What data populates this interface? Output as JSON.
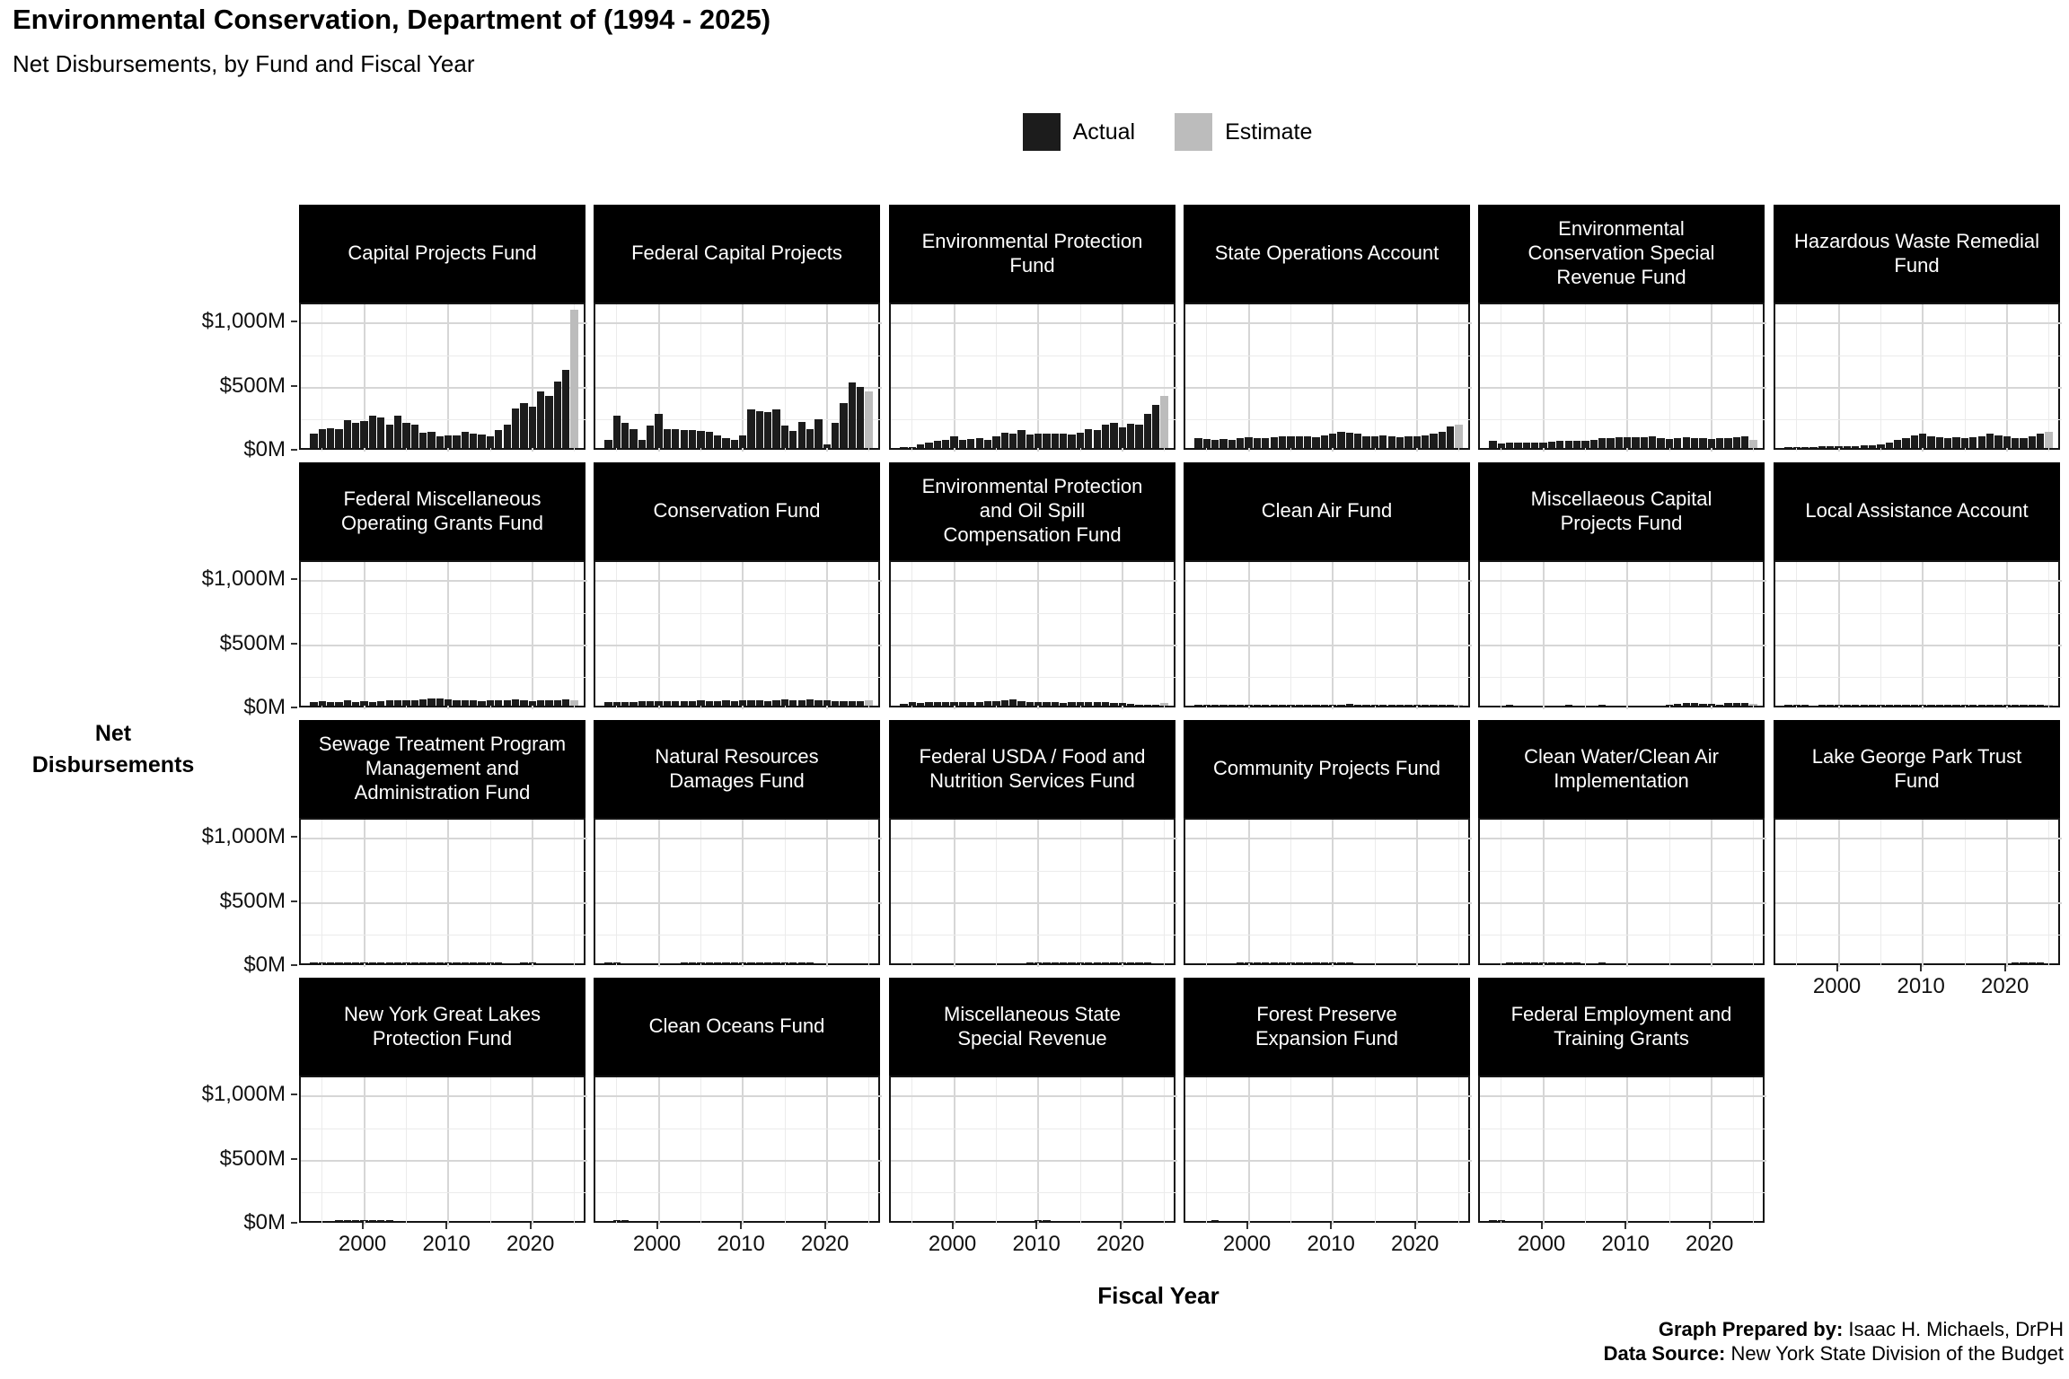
{
  "header": {
    "title": "Environmental Conservation, Department of (1994 - 2025)",
    "subtitle": "Net Disbursements, by Fund and Fiscal Year"
  },
  "legend": {
    "items": [
      {
        "label": "Actual",
        "color": "#1c1c1c"
      },
      {
        "label": "Estimate",
        "color": "#bcbcbc"
      }
    ]
  },
  "axes": {
    "y_label_lines": [
      "Net",
      "Disbursements"
    ],
    "x_label": "Fiscal Year",
    "y_ticks": [
      "$0M",
      "$500M",
      "$1,000M"
    ],
    "x_ticks": [
      "2000",
      "2010",
      "2020"
    ]
  },
  "footer": {
    "prepared_label": "Graph Prepared by:",
    "prepared_value": " Isaac H. Michaels, DrPH",
    "source_label": "Data Source:",
    "source_value": " New York State Division of the Budget"
  },
  "chart_data": {
    "type": "bar",
    "title": "Environmental Conservation, Department of (1994 - 2025)",
    "subtitle": "Net Disbursements, by Fund and Fiscal Year",
    "xlabel": "Fiscal Year",
    "ylabel": "Net Disbursements",
    "units": "$M",
    "x": [
      1994,
      1995,
      1996,
      1997,
      1998,
      1999,
      2000,
      2001,
      2002,
      2003,
      2004,
      2005,
      2006,
      2007,
      2008,
      2009,
      2010,
      2011,
      2012,
      2013,
      2014,
      2015,
      2016,
      2017,
      2018,
      2019,
      2020,
      2021,
      2022,
      2023,
      2024,
      2025
    ],
    "ylim": [
      0,
      1150
    ],
    "y_tick_values": [
      0,
      500,
      1000
    ],
    "x_tick_values": [
      2000,
      2010,
      2020
    ],
    "grid": true,
    "legend_position": "top",
    "estimate_year": 2025,
    "series_colors": {
      "actual": "#1c1c1c",
      "estimate": "#bcbcbc"
    },
    "facets": [
      {
        "name": "Capital Projects Fund",
        "title_lines": [
          "Capital Projects Fund"
        ],
        "values": [
          110,
          150,
          155,
          145,
          215,
          200,
          210,
          250,
          240,
          185,
          255,
          195,
          180,
          120,
          130,
          95,
          100,
          100,
          130,
          115,
          105,
          90,
          140,
          185,
          310,
          350,
          325,
          445,
          410,
          520,
          610,
          1080
        ]
      },
      {
        "name": "Federal Capital Projects",
        "title_lines": [
          "Federal Capital Projects"
        ],
        "values": [
          60,
          250,
          200,
          150,
          60,
          175,
          265,
          150,
          145,
          140,
          140,
          135,
          125,
          100,
          80,
          65,
          100,
          305,
          290,
          280,
          300,
          175,
          135,
          205,
          145,
          225,
          30,
          200,
          350,
          515,
          480,
          445
        ]
      },
      {
        "name": "Environmental Protection Fund",
        "title_lines": [
          "Environmental Protection",
          "Fund"
        ],
        "values": [
          5,
          10,
          25,
          40,
          55,
          60,
          90,
          65,
          70,
          80,
          65,
          95,
          120,
          115,
          140,
          105,
          110,
          115,
          115,
          110,
          105,
          120,
          150,
          140,
          180,
          195,
          165,
          190,
          185,
          265,
          335,
          410
        ]
      },
      {
        "name": "State Operations Account",
        "title_lines": [
          "State Operations Account"
        ],
        "values": [
          75,
          70,
          65,
          70,
          60,
          80,
          85,
          75,
          80,
          85,
          90,
          95,
          95,
          90,
          85,
          100,
          115,
          125,
          120,
          110,
          90,
          95,
          100,
          90,
          85,
          90,
          95,
          100,
          110,
          130,
          170,
          185
        ]
      },
      {
        "name": "Environmental Conservation Special Revenue Fund",
        "title_lines": [
          "Environmental",
          "Conservation Special",
          "Revenue Fund"
        ],
        "values": [
          55,
          35,
          40,
          40,
          45,
          40,
          45,
          50,
          55,
          55,
          55,
          55,
          65,
          75,
          80,
          85,
          85,
          85,
          85,
          90,
          75,
          70,
          80,
          85,
          80,
          75,
          70,
          75,
          80,
          85,
          90,
          65
        ]
      },
      {
        "name": "Hazardous Waste Remedial Fund",
        "title_lines": [
          "Hazardous Waste Remedial",
          "Fund"
        ],
        "values": [
          5,
          8,
          8,
          10,
          12,
          15,
          15,
          15,
          15,
          18,
          20,
          25,
          45,
          65,
          80,
          100,
          110,
          95,
          85,
          80,
          85,
          80,
          85,
          95,
          110,
          100,
          90,
          80,
          75,
          90,
          115,
          130
        ]
      },
      {
        "name": "Federal Miscellaneous Operating Grants Fund",
        "title_lines": [
          "Federal Miscellaneous",
          "Operating Grants Fund"
        ],
        "values": [
          30,
          35,
          25,
          30,
          40,
          30,
          35,
          30,
          35,
          40,
          40,
          45,
          40,
          50,
          55,
          55,
          50,
          45,
          40,
          45,
          35,
          45,
          40,
          45,
          50,
          40,
          35,
          40,
          40,
          45,
          50,
          45
        ]
      },
      {
        "name": "Conservation Fund",
        "title_lines": [
          "Conservation Fund"
        ],
        "values": [
          25,
          28,
          28,
          30,
          35,
          32,
          35,
          35,
          38,
          35,
          35,
          40,
          38,
          35,
          42,
          38,
          45,
          40,
          42,
          38,
          45,
          48,
          42,
          45,
          48,
          42,
          40,
          38,
          38,
          36,
          35,
          40
        ]
      },
      {
        "name": "Environmental Protection and Oil Spill Compensation Fund",
        "title_lines": [
          "Environmental Protection",
          "and Oil Spill",
          "Compensation Fund"
        ],
        "values": [
          15,
          25,
          22,
          25,
          25,
          28,
          25,
          25,
          28,
          30,
          35,
          32,
          40,
          48,
          38,
          30,
          28,
          25,
          28,
          22,
          25,
          30,
          28,
          25,
          25,
          22,
          20,
          12,
          10,
          10,
          10,
          18
        ]
      },
      {
        "name": "Clean Air Fund",
        "title_lines": [
          "Clean Air Fund"
        ],
        "values": [
          2,
          5,
          6,
          6,
          7,
          7,
          8,
          8,
          8,
          8,
          8,
          9,
          8,
          8,
          9,
          8,
          8,
          10,
          12,
          8,
          6,
          6,
          6,
          6,
          6,
          5,
          5,
          5,
          5,
          5,
          4,
          4
        ]
      },
      {
        "name": "Miscellaeous Capital Projects Fund",
        "title_lines": [
          "Miscellaeous Capital",
          "Projects Fund"
        ],
        "values": [
          0,
          0,
          2,
          0,
          0,
          0,
          0,
          0,
          0,
          2,
          0,
          0,
          0,
          2,
          0,
          0,
          0,
          0,
          0,
          0,
          0,
          2,
          15,
          20,
          20,
          15,
          12,
          10,
          18,
          20,
          20,
          12
        ]
      },
      {
        "name": "Local Assistance Account",
        "title_lines": [
          "Local Assistance Account"
        ],
        "values": [
          3,
          5,
          1,
          0,
          1,
          1,
          1,
          2,
          2,
          1,
          2,
          2,
          1,
          1,
          1,
          5,
          5,
          1,
          1,
          1,
          1,
          1,
          1,
          1,
          1,
          1,
          1,
          4,
          1,
          1,
          1,
          1
        ]
      },
      {
        "name": "Sewage Treatment Program Management and Administration Fund",
        "title_lines": [
          "Sewage Treatment Program",
          "Management and",
          "Administration Fund"
        ],
        "values": [
          1,
          1,
          1,
          1,
          1,
          1,
          1,
          1,
          1,
          1,
          1,
          1,
          1,
          1,
          1,
          1,
          1,
          1,
          1,
          1,
          1,
          1,
          1,
          0,
          0,
          1,
          1,
          0,
          0,
          0,
          0,
          0
        ]
      },
      {
        "name": "Natural Resources Damages Fund",
        "title_lines": [
          "Natural Resources",
          "Damages Fund"
        ],
        "values": [
          10,
          3,
          0,
          0,
          0,
          0,
          0,
          0,
          0,
          1,
          1,
          1,
          1,
          1,
          1,
          1,
          1,
          1,
          1,
          1,
          1,
          1,
          1,
          1,
          1,
          0,
          0,
          0,
          0,
          0,
          0,
          0
        ]
      },
      {
        "name": "Federal USDA / Food and Nutrition Services Fund",
        "title_lines": [
          "Federal USDA / Food and",
          "Nutrition Services Fund"
        ],
        "values": [
          0,
          0,
          0,
          0,
          0,
          0,
          0,
          0,
          0,
          0,
          0,
          0,
          0,
          0,
          0,
          2,
          2,
          2,
          2,
          2,
          2,
          2,
          2,
          2,
          2,
          2,
          2,
          2,
          2,
          2,
          0,
          0
        ]
      },
      {
        "name": "Community Projects Fund",
        "title_lines": [
          "Community Projects Fund"
        ],
        "values": [
          0,
          0,
          0,
          0,
          0,
          2,
          2,
          2,
          2,
          2,
          2,
          2,
          2,
          2,
          2,
          2,
          2,
          2,
          2,
          0,
          0,
          0,
          0,
          0,
          0,
          0,
          0,
          0,
          0,
          0,
          0,
          0
        ]
      },
      {
        "name": "Clean Water/Clean Air Implementation",
        "title_lines": [
          "Clean Water/Clean Air",
          "Implementation"
        ],
        "values": [
          0,
          0,
          2,
          2,
          2,
          2,
          2,
          2,
          2,
          2,
          2,
          0,
          0,
          2,
          0,
          0,
          0,
          0,
          0,
          0,
          0,
          0,
          0,
          0,
          0,
          0,
          0,
          0,
          0,
          0,
          0,
          0
        ]
      },
      {
        "name": "Lake George Park Trust Fund",
        "title_lines": [
          "Lake George Park Trust",
          "Fund"
        ],
        "values": [
          0,
          0,
          0,
          0,
          0,
          0,
          0,
          0,
          0,
          0,
          0,
          0,
          0,
          0,
          0,
          0,
          0,
          0,
          0,
          0,
          0,
          0,
          0,
          0,
          0,
          0,
          0,
          1,
          1,
          1,
          1,
          0
        ]
      },
      {
        "name": "New York Great Lakes Protection Fund",
        "title_lines": [
          "New York Great Lakes",
          "Protection Fund"
        ],
        "values": [
          0,
          0,
          0,
          1,
          1,
          1,
          1,
          1,
          1,
          1,
          0,
          0,
          0,
          0,
          0,
          0,
          0,
          0,
          0,
          0,
          0,
          0,
          0,
          0,
          0,
          0,
          0,
          0,
          0,
          0,
          0,
          0
        ]
      },
      {
        "name": "Clean Oceans Fund",
        "title_lines": [
          "Clean Oceans Fund"
        ],
        "values": [
          0,
          4,
          1,
          0,
          0,
          0,
          0,
          0,
          0,
          0,
          0,
          0,
          0,
          0,
          0,
          0,
          0,
          0,
          0,
          0,
          0,
          0,
          0,
          0,
          0,
          0,
          0,
          0,
          0,
          0,
          0,
          0
        ]
      },
      {
        "name": "Miscellaneous State Special Revenue",
        "title_lines": [
          "Miscellaneous State",
          "Special Revenue"
        ],
        "values": [
          0,
          0,
          0,
          0,
          0,
          0,
          0,
          0,
          0,
          0,
          0,
          0,
          0,
          0,
          0,
          0,
          1,
          1,
          0,
          0,
          0,
          0,
          0,
          0,
          0,
          0,
          0,
          0,
          0,
          0,
          0,
          0
        ]
      },
      {
        "name": "Forest Preserve Expansion Fund",
        "title_lines": [
          "Forest Preserve",
          "Expansion Fund"
        ],
        "values": [
          0,
          0,
          1,
          0,
          0,
          0,
          0,
          0,
          0,
          0,
          0,
          0,
          0,
          0,
          0,
          0,
          0,
          0,
          0,
          0,
          0,
          0,
          0,
          0,
          0,
          0,
          0,
          0,
          0,
          0,
          0,
          0
        ]
      },
      {
        "name": "Federal Employment and Training Grants",
        "title_lines": [
          "Federal Employment and",
          "Training Grants"
        ],
        "values": [
          1,
          1,
          0,
          0,
          0,
          0,
          0,
          0,
          0,
          0,
          0,
          0,
          0,
          0,
          0,
          0,
          0,
          0,
          0,
          0,
          0,
          0,
          0,
          0,
          0,
          0,
          0,
          0,
          0,
          0,
          0,
          0
        ]
      }
    ]
  }
}
